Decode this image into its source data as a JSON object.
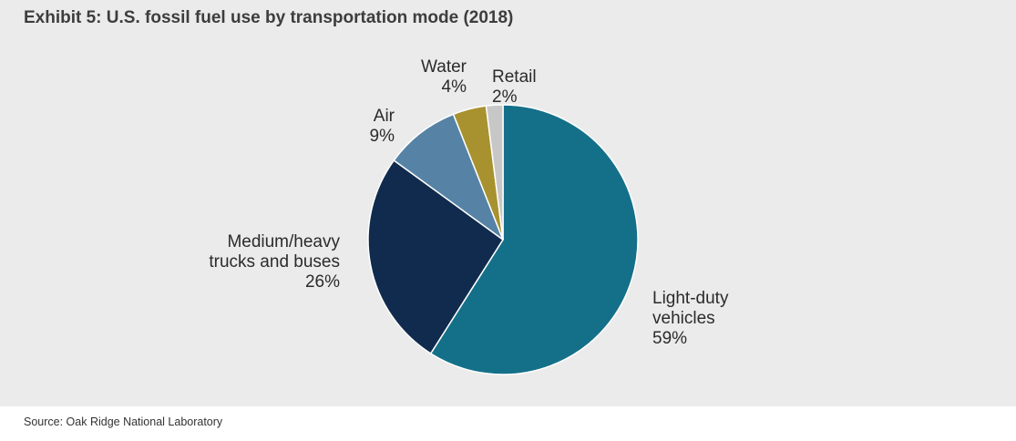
{
  "chart_data": {
    "type": "pie",
    "title": "Exhibit 5: U.S. fossil fuel use by transportation mode (2018)",
    "slices": [
      {
        "label": "Light-duty vehicles",
        "label_lines": [
          "Light-duty",
          "vehicles"
        ],
        "value": 59,
        "value_text": "59%",
        "color": "#147089"
      },
      {
        "label": "Medium/heavy trucks and buses",
        "label_lines": [
          "Medium/heavy",
          "trucks and buses"
        ],
        "value": 26,
        "value_text": "26%",
        "color": "#112b4e"
      },
      {
        "label": "Air",
        "label_lines": [
          "Air"
        ],
        "value": 9,
        "value_text": "9%",
        "color": "#5683a5"
      },
      {
        "label": "Water",
        "label_lines": [
          "Water"
        ],
        "value": 4,
        "value_text": "4%",
        "color": "#a8922f"
      },
      {
        "label": "Retail",
        "label_lines": [
          "Retail"
        ],
        "value": 2,
        "value_text": "2%",
        "color": "#c7c7c7"
      }
    ],
    "legend": "none"
  },
  "source": "Source: Oak Ridge National Laboratory"
}
